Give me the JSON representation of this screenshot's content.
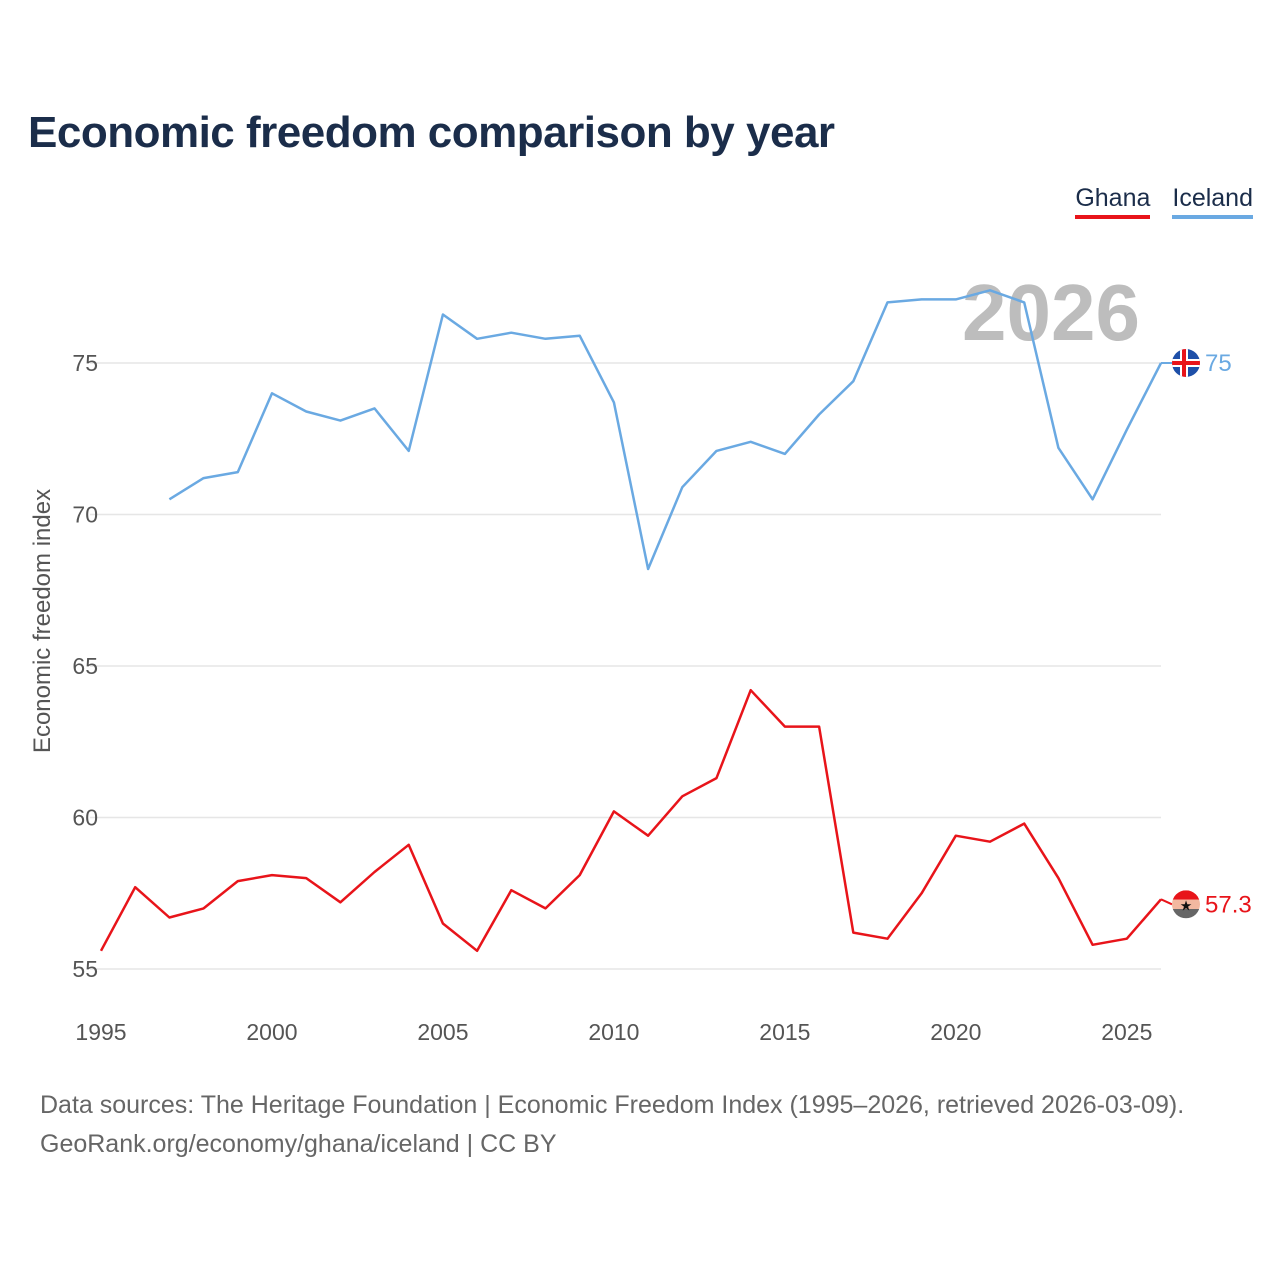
{
  "chart_data": {
    "type": "line",
    "title": "Economic freedom comparison by year",
    "xlabel": "",
    "ylabel": "Economic freedom index",
    "xlim": [
      1995,
      2026
    ],
    "ylim": [
      54.5,
      79
    ],
    "x_ticks": [
      1995,
      2000,
      2005,
      2010,
      2015,
      2020,
      2025
    ],
    "y_ticks": [
      55,
      60,
      65,
      70,
      75
    ],
    "grid": true,
    "legend_position": "top-right",
    "year_watermark": "2026",
    "series": [
      {
        "name": "Ghana",
        "color": "#e8141a",
        "end_label": "57.3",
        "icon": "ghana-flag-icon",
        "points": [
          [
            1995,
            55.6
          ],
          [
            1996,
            57.7
          ],
          [
            1997,
            56.7
          ],
          [
            1998,
            57.0
          ],
          [
            1999,
            57.9
          ],
          [
            2000,
            58.1
          ],
          [
            2001,
            58.0
          ],
          [
            2002,
            57.2
          ],
          [
            2003,
            58.2
          ],
          [
            2004,
            59.1
          ],
          [
            2005,
            56.5
          ],
          [
            2006,
            55.6
          ],
          [
            2007,
            57.6
          ],
          [
            2008,
            57.0
          ],
          [
            2009,
            58.1
          ],
          [
            2010,
            60.2
          ],
          [
            2011,
            59.4
          ],
          [
            2012,
            60.7
          ],
          [
            2013,
            61.3
          ],
          [
            2014,
            64.2
          ],
          [
            2015,
            63.0
          ],
          [
            2016,
            63.0
          ],
          [
            2017,
            56.2
          ],
          [
            2018,
            56.0
          ],
          [
            2019,
            57.5
          ],
          [
            2020,
            59.4
          ],
          [
            2021,
            59.2
          ],
          [
            2022,
            59.8
          ],
          [
            2023,
            58.0
          ],
          [
            2024,
            55.8
          ],
          [
            2025,
            56.0
          ],
          [
            2026,
            57.3
          ]
        ]
      },
      {
        "name": "Iceland",
        "color": "#6aa9e2",
        "end_label": "75",
        "icon": "iceland-flag-icon",
        "points": [
          [
            1997,
            70.5
          ],
          [
            1998,
            71.2
          ],
          [
            1999,
            71.4
          ],
          [
            2000,
            74.0
          ],
          [
            2001,
            73.4
          ],
          [
            2002,
            73.1
          ],
          [
            2003,
            73.5
          ],
          [
            2004,
            72.1
          ],
          [
            2005,
            76.6
          ],
          [
            2006,
            75.8
          ],
          [
            2007,
            76.0
          ],
          [
            2008,
            75.8
          ],
          [
            2009,
            75.9
          ],
          [
            2010,
            73.7
          ],
          [
            2011,
            68.2
          ],
          [
            2012,
            70.9
          ],
          [
            2013,
            72.1
          ],
          [
            2014,
            72.4
          ],
          [
            2015,
            72.0
          ],
          [
            2016,
            73.3
          ],
          [
            2017,
            74.4
          ],
          [
            2018,
            77.0
          ],
          [
            2019,
            77.1
          ],
          [
            2020,
            77.1
          ],
          [
            2021,
            77.4
          ],
          [
            2022,
            77.0
          ],
          [
            2023,
            72.2
          ],
          [
            2024,
            70.5
          ],
          [
            2025,
            72.8
          ],
          [
            2026,
            75.0
          ]
        ]
      }
    ]
  },
  "footer": {
    "line1": "Data sources: The Heritage Foundation | Economic Freedom Index (1995–2026, retrieved 2026-03-09).",
    "line2": "GeoRank.org/economy/ghana/iceland | CC BY"
  }
}
